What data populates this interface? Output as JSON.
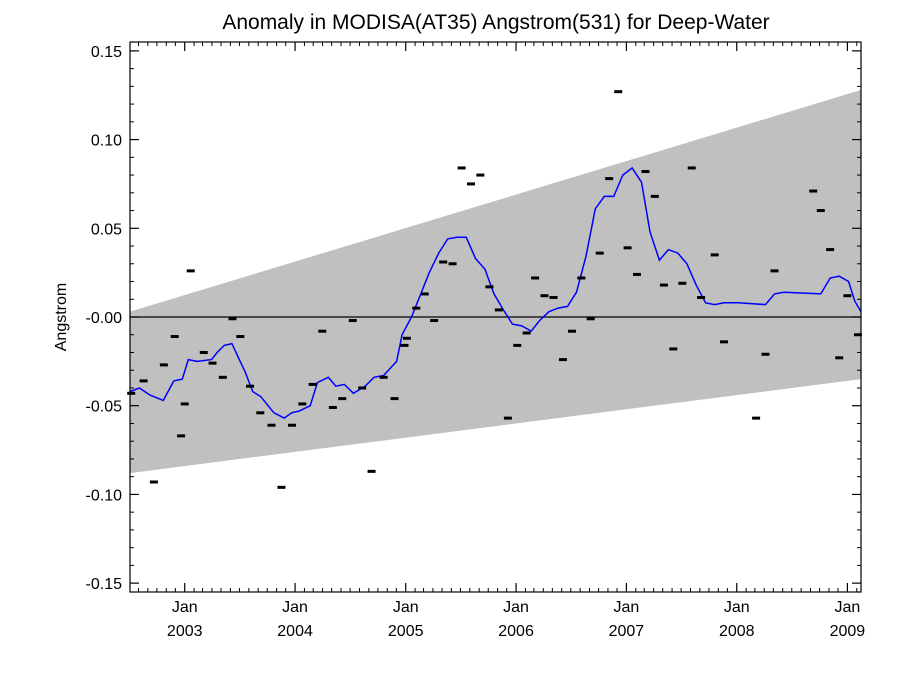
{
  "chart_data": {
    "type": "line",
    "title": "Anomaly in MODISA(AT35) Angstrom(531) for Deep-Water",
    "xlabel": "",
    "ylabel": "Angstrom",
    "ylim": [
      -0.155,
      0.155
    ],
    "xlim": [
      "2002-07-04",
      "2009-02-15"
    ],
    "y_ticks": [
      {
        "value": 0.15,
        "label": "0.15"
      },
      {
        "value": 0.1,
        "label": "0.10"
      },
      {
        "value": 0.05,
        "label": "0.05"
      },
      {
        "value": 0.0,
        "label": "-0.00"
      },
      {
        "value": -0.05,
        "label": "-0.05"
      },
      {
        "value": -0.1,
        "label": "-0.10"
      },
      {
        "value": -0.15,
        "label": "-0.15"
      }
    ],
    "x_ticks": [
      {
        "date": "2003-01-01",
        "month": "Jan",
        "year": "2003"
      },
      {
        "date": "2004-01-01",
        "month": "Jan",
        "year": "2004"
      },
      {
        "date": "2005-01-01",
        "month": "Jan",
        "year": "2005"
      },
      {
        "date": "2006-01-01",
        "month": "Jan",
        "year": "2006"
      },
      {
        "date": "2007-01-01",
        "month": "Jan",
        "year": "2007"
      },
      {
        "date": "2008-01-01",
        "month": "Jan",
        "year": "2008"
      },
      {
        "date": "2009-01-01",
        "month": "Jan",
        "year": "2009"
      }
    ],
    "grid": false,
    "zero_line": true,
    "envelope": {
      "color": "#c0c0c0",
      "upper": [
        {
          "x": "2002-07-04",
          "y": 0.003
        },
        {
          "x": "2009-02-15",
          "y": 0.128
        }
      ],
      "lower": [
        {
          "x": "2002-07-04",
          "y": -0.088
        },
        {
          "x": "2009-02-15",
          "y": -0.035
        }
      ]
    },
    "series": [
      {
        "type": "line",
        "color": "#0000ff",
        "points": [
          {
            "x": "2002-07-04",
            "y": -0.042
          },
          {
            "x": "2002-08-04",
            "y": -0.04
          },
          {
            "x": "2002-09-08",
            "y": -0.044
          },
          {
            "x": "2002-10-22",
            "y": -0.047
          },
          {
            "x": "2002-11-26",
            "y": -0.036
          },
          {
            "x": "2002-12-24",
            "y": -0.035
          },
          {
            "x": "2003-01-13",
            "y": -0.024
          },
          {
            "x": "2003-02-11",
            "y": -0.025
          },
          {
            "x": "2003-03-31",
            "y": -0.024
          },
          {
            "x": "2003-04-18",
            "y": -0.02
          },
          {
            "x": "2003-05-12",
            "y": -0.016
          },
          {
            "x": "2003-06-06",
            "y": -0.015
          },
          {
            "x": "2003-06-28",
            "y": -0.023
          },
          {
            "x": "2003-07-20",
            "y": -0.031
          },
          {
            "x": "2003-08-14",
            "y": -0.042
          },
          {
            "x": "2003-09-10",
            "y": -0.045
          },
          {
            "x": "2003-10-23",
            "y": -0.054
          },
          {
            "x": "2003-11-26",
            "y": -0.057
          },
          {
            "x": "2003-12-21",
            "y": -0.054
          },
          {
            "x": "2004-01-15",
            "y": -0.053
          },
          {
            "x": "2004-02-20",
            "y": -0.05
          },
          {
            "x": "2004-03-15",
            "y": -0.037
          },
          {
            "x": "2004-04-20",
            "y": -0.034
          },
          {
            "x": "2004-05-15",
            "y": -0.039
          },
          {
            "x": "2004-06-12",
            "y": -0.038
          },
          {
            "x": "2004-07-12",
            "y": -0.043
          },
          {
            "x": "2004-08-20",
            "y": -0.039
          },
          {
            "x": "2004-09-18",
            "y": -0.034
          },
          {
            "x": "2004-10-20",
            "y": -0.033
          },
          {
            "x": "2004-12-02",
            "y": -0.025
          },
          {
            "x": "2004-12-20",
            "y": -0.01
          },
          {
            "x": "2005-01-20",
            "y": 0.0
          },
          {
            "x": "2005-02-20",
            "y": 0.013
          },
          {
            "x": "2005-03-20",
            "y": 0.025
          },
          {
            "x": "2005-04-20",
            "y": 0.036
          },
          {
            "x": "2005-05-20",
            "y": 0.044
          },
          {
            "x": "2005-06-20",
            "y": 0.045
          },
          {
            "x": "2005-07-20",
            "y": 0.045
          },
          {
            "x": "2005-08-20",
            "y": 0.033
          },
          {
            "x": "2005-09-20",
            "y": 0.027
          },
          {
            "x": "2005-10-20",
            "y": 0.013
          },
          {
            "x": "2005-11-20",
            "y": 0.004
          },
          {
            "x": "2005-12-20",
            "y": -0.004
          },
          {
            "x": "2006-01-20",
            "y": -0.005
          },
          {
            "x": "2006-02-20",
            "y": -0.008
          },
          {
            "x": "2006-03-20",
            "y": -0.002
          },
          {
            "x": "2006-04-20",
            "y": 0.003
          },
          {
            "x": "2006-05-20",
            "y": 0.005
          },
          {
            "x": "2006-06-20",
            "y": 0.006
          },
          {
            "x": "2006-07-20",
            "y": 0.014
          },
          {
            "x": "2006-08-20",
            "y": 0.034
          },
          {
            "x": "2006-09-20",
            "y": 0.061
          },
          {
            "x": "2006-10-20",
            "y": 0.068
          },
          {
            "x": "2006-11-20",
            "y": 0.068
          },
          {
            "x": "2006-12-20",
            "y": 0.08
          },
          {
            "x": "2007-01-20",
            "y": 0.084
          },
          {
            "x": "2007-02-20",
            "y": 0.076
          },
          {
            "x": "2007-03-20",
            "y": 0.048
          },
          {
            "x": "2007-04-20",
            "y": 0.032
          },
          {
            "x": "2007-05-20",
            "y": 0.038
          },
          {
            "x": "2007-06-20",
            "y": 0.036
          },
          {
            "x": "2007-07-20",
            "y": 0.03
          },
          {
            "x": "2007-08-20",
            "y": 0.018
          },
          {
            "x": "2007-09-20",
            "y": 0.008
          },
          {
            "x": "2007-10-20",
            "y": 0.007
          },
          {
            "x": "2007-11-20",
            "y": 0.008
          },
          {
            "x": "2008-01-05",
            "y": 0.008
          },
          {
            "x": "2008-04-05",
            "y": 0.007
          },
          {
            "x": "2008-05-05",
            "y": 0.013
          },
          {
            "x": "2008-06-05",
            "y": 0.014
          },
          {
            "x": "2008-10-05",
            "y": 0.013
          },
          {
            "x": "2008-11-05",
            "y": 0.022
          },
          {
            "x": "2008-12-05",
            "y": 0.023
          },
          {
            "x": "2009-01-05",
            "y": 0.02
          },
          {
            "x": "2009-01-25",
            "y": 0.009
          },
          {
            "x": "2009-02-15",
            "y": 0.003
          }
        ]
      },
      {
        "type": "marker",
        "color": "#000000",
        "points": [
          {
            "x": "2002-07-08",
            "y": -0.043
          },
          {
            "x": "2002-08-18",
            "y": -0.036
          },
          {
            "x": "2002-09-21",
            "y": -0.093
          },
          {
            "x": "2002-10-24",
            "y": -0.027
          },
          {
            "x": "2002-11-29",
            "y": -0.011
          },
          {
            "x": "2002-12-20",
            "y": -0.067
          },
          {
            "x": "2003-01-01",
            "y": -0.049
          },
          {
            "x": "2003-01-21",
            "y": 0.026
          },
          {
            "x": "2003-03-05",
            "y": -0.02
          },
          {
            "x": "2003-04-03",
            "y": -0.026
          },
          {
            "x": "2003-05-07",
            "y": -0.034
          },
          {
            "x": "2003-06-08",
            "y": -0.001
          },
          {
            "x": "2003-07-04",
            "y": -0.011
          },
          {
            "x": "2003-08-05",
            "y": -0.039
          },
          {
            "x": "2003-09-08",
            "y": -0.054
          },
          {
            "x": "2003-10-15",
            "y": -0.061
          },
          {
            "x": "2003-11-17",
            "y": -0.096
          },
          {
            "x": "2003-12-22",
            "y": -0.061
          },
          {
            "x": "2004-01-25",
            "y": -0.049
          },
          {
            "x": "2004-02-28",
            "y": -0.038
          },
          {
            "x": "2004-03-31",
            "y": -0.008
          },
          {
            "x": "2004-05-05",
            "y": -0.051
          },
          {
            "x": "2004-06-05",
            "y": -0.046
          },
          {
            "x": "2004-07-10",
            "y": -0.002
          },
          {
            "x": "2004-08-10",
            "y": -0.04
          },
          {
            "x": "2004-09-10",
            "y": -0.087
          },
          {
            "x": "2004-10-20",
            "y": -0.034
          },
          {
            "x": "2004-11-25",
            "y": -0.046
          },
          {
            "x": "2004-12-28",
            "y": -0.016
          },
          {
            "x": "2005-01-05",
            "y": -0.012
          },
          {
            "x": "2005-02-05",
            "y": 0.005
          },
          {
            "x": "2005-03-05",
            "y": 0.013
          },
          {
            "x": "2005-04-05",
            "y": -0.002
          },
          {
            "x": "2005-05-05",
            "y": 0.031
          },
          {
            "x": "2005-06-05",
            "y": 0.03
          },
          {
            "x": "2005-07-05",
            "y": 0.084
          },
          {
            "x": "2005-08-05",
            "y": 0.075
          },
          {
            "x": "2005-09-05",
            "y": 0.08
          },
          {
            "x": "2005-10-05",
            "y": 0.017
          },
          {
            "x": "2005-11-05",
            "y": 0.004
          },
          {
            "x": "2005-12-05",
            "y": -0.057
          },
          {
            "x": "2006-01-05",
            "y": -0.016
          },
          {
            "x": "2006-02-05",
            "y": -0.009
          },
          {
            "x": "2006-03-05",
            "y": 0.022
          },
          {
            "x": "2006-04-05",
            "y": 0.012
          },
          {
            "x": "2006-05-05",
            "y": 0.011
          },
          {
            "x": "2006-06-05",
            "y": -0.024
          },
          {
            "x": "2006-07-05",
            "y": -0.008
          },
          {
            "x": "2006-08-05",
            "y": 0.022
          },
          {
            "x": "2006-09-05",
            "y": -0.001
          },
          {
            "x": "2006-10-05",
            "y": 0.036
          },
          {
            "x": "2006-11-05",
            "y": 0.078
          },
          {
            "x": "2006-12-05",
            "y": 0.127
          },
          {
            "x": "2007-01-05",
            "y": 0.039
          },
          {
            "x": "2007-02-05",
            "y": 0.024
          },
          {
            "x": "2007-03-05",
            "y": 0.082
          },
          {
            "x": "2007-04-05",
            "y": 0.068
          },
          {
            "x": "2007-05-05",
            "y": 0.018
          },
          {
            "x": "2007-06-05",
            "y": -0.018
          },
          {
            "x": "2007-07-05",
            "y": 0.019
          },
          {
            "x": "2007-08-05",
            "y": 0.084
          },
          {
            "x": "2007-09-05",
            "y": 0.011
          },
          {
            "x": "2007-10-20",
            "y": 0.035
          },
          {
            "x": "2007-11-20",
            "y": -0.014
          },
          {
            "x": "2008-03-05",
            "y": -0.057
          },
          {
            "x": "2008-04-05",
            "y": -0.021
          },
          {
            "x": "2008-05-05",
            "y": 0.026
          },
          {
            "x": "2008-09-10",
            "y": 0.071
          },
          {
            "x": "2008-10-05",
            "y": 0.06
          },
          {
            "x": "2008-11-05",
            "y": 0.038
          },
          {
            "x": "2008-12-05",
            "y": -0.023
          },
          {
            "x": "2009-01-01",
            "y": 0.012
          },
          {
            "x": "2009-02-05",
            "y": -0.01
          }
        ]
      }
    ]
  }
}
